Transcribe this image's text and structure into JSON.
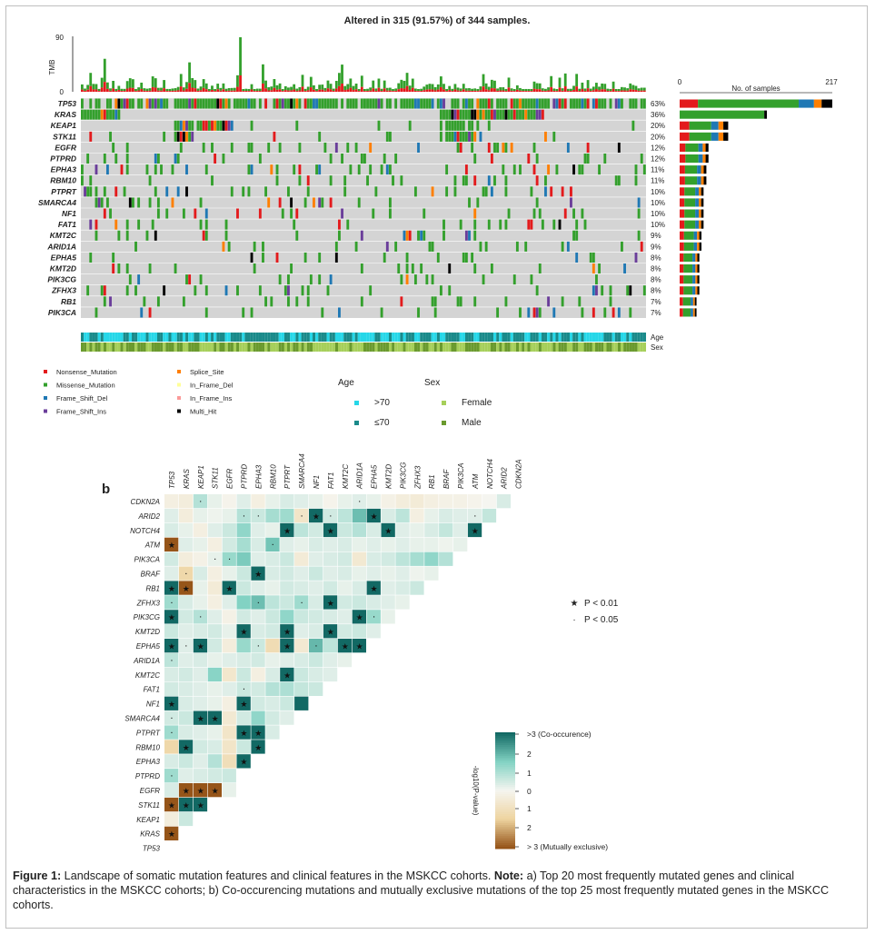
{
  "panel_a": {
    "title": "Altered in 315 (91.57%) of 344 samples.",
    "tmb_label": "TMB",
    "tmb_ticks": [
      "90",
      "0"
    ],
    "bar_axis_label": "No. of samples",
    "bar_axis_ticks": [
      "0",
      "217"
    ],
    "track_labels": [
      "Age",
      "Sex"
    ],
    "mutation_legend": [
      {
        "label": "Nonsense_Mutation",
        "color": "#e31a1c"
      },
      {
        "label": "Missense_Mutation",
        "color": "#33a02c"
      },
      {
        "label": "Frame_Shift_Del",
        "color": "#1f78b4"
      },
      {
        "label": "Frame_Shift_Ins",
        "color": "#6a3d9a"
      },
      {
        "label": "Splice_Site",
        "color": "#ff7f00"
      },
      {
        "label": "In_Frame_Del",
        "color": "#ffff99"
      },
      {
        "label": "In_Frame_Ins",
        "color": "#fb9a99"
      },
      {
        "label": "Multi_Hit",
        "color": "#000000"
      }
    ],
    "age_legend": {
      "title": "Age",
      "items": [
        {
          "label": ">70",
          "color": "#26d7e8"
        },
        {
          "label": "≤70",
          "color": "#1a8a8a"
        }
      ]
    },
    "sex_legend": {
      "title": "Sex",
      "items": [
        {
          "label": "Female",
          "color": "#a6cf5a"
        },
        {
          "label": "Male",
          "color": "#6a9a2e"
        }
      ]
    }
  },
  "chart_data": [
    {
      "type": "bar",
      "title": "Altered in 315 (91.57%) of 344 samples.",
      "xlabel": "No. of samples",
      "xlim": [
        0,
        217
      ],
      "categories": [
        "TP53",
        "KRAS",
        "KEAP1",
        "STK11",
        "EGFR",
        "PTPRD",
        "EPHA3",
        "RBM10",
        "PTPRT",
        "SMARCA4",
        "NF1",
        "FAT1",
        "KMT2C",
        "ARID1A",
        "EPHA5",
        "KMT2D",
        "PIK3CG",
        "ZFHX3",
        "RB1",
        "PIK3CA"
      ],
      "percent_labels": [
        "63%",
        "36%",
        "20%",
        "20%",
        "12%",
        "12%",
        "11%",
        "11%",
        "10%",
        "10%",
        "10%",
        "10%",
        "9%",
        "9%",
        "8%",
        "8%",
        "8%",
        "8%",
        "7%",
        "7%"
      ],
      "values": [
        217,
        124,
        69,
        69,
        41,
        41,
        38,
        38,
        34,
        34,
        34,
        34,
        31,
        31,
        28,
        28,
        28,
        28,
        24,
        24
      ]
    },
    {
      "type": "heatmap",
      "panel_label": "b",
      "x_genes": [
        "TP53",
        "KRAS",
        "KEAP1",
        "STK11",
        "EGFR",
        "PTPRD",
        "EPHA3",
        "RBM10",
        "PTPRT",
        "SMARCA4",
        "NF1",
        "FAT1",
        "KMT2C",
        "ARID1A",
        "EPHA5",
        "KMT2D",
        "PIK3CG",
        "ZFHX3",
        "RB1",
        "BRAF",
        "PIK3CA",
        "ATM",
        "NOTCH4",
        "ARID2",
        "CDKN2A"
      ],
      "y_genes": [
        "CDKN2A",
        "ARID2",
        "NOTCH4",
        "ATM",
        "PIK3CA",
        "BRAF",
        "RB1",
        "ZFHX3",
        "PIK3CG",
        "KMT2D",
        "EPHA5",
        "ARID1A",
        "KMT2C",
        "FAT1",
        "NF1",
        "SMARCA4",
        "PTPRT",
        "RBM10",
        "EPHA3",
        "PTPRD",
        "EGFR",
        "STK11",
        "KEAP1",
        "KRAS",
        "TP53"
      ],
      "colorbar_label": "-log10(P-value)",
      "colorbar_ticks": [
        ">3 (Co-occurence)",
        "2",
        "1",
        "0",
        "1",
        "2",
        "> 3 (Mutually exclusive)"
      ],
      "significance_legend": [
        {
          "symbol": "★",
          "label": "P < 0.01"
        },
        {
          "symbol": "·",
          "label": "P < 0.05"
        }
      ],
      "values": [
        [
          -0.3,
          -0.4,
          0.9,
          0.2,
          -0.1,
          0.3,
          -0.3,
          0.2,
          0.4,
          0.3,
          0.2,
          -0.1,
          0.2,
          0.3,
          0.2,
          -0.2,
          -0.4,
          -0.5,
          -0.3,
          -0.2,
          -0.2,
          -0.1,
          0,
          0.4
        ],
        [
          0.3,
          -0.4,
          0.2,
          0.1,
          0.2,
          0.9,
          0.6,
          1.1,
          1.2,
          -0.8,
          3.2,
          0.5,
          0.8,
          1.9,
          3.2,
          0.4,
          0.8,
          -0.3,
          0.2,
          0.4,
          0.3,
          0.3,
          0.7
        ],
        [
          0.4,
          0.2,
          -0.3,
          0.3,
          0.6,
          1.4,
          0.3,
          0.2,
          3.2,
          0.8,
          0.5,
          3.2,
          0.6,
          0.9,
          0.4,
          3.2,
          0.3,
          0.2,
          0.4,
          0.7,
          0.3,
          3.2
        ],
        [
          -3.2,
          0.3,
          0.2,
          -0.3,
          0.5,
          1.1,
          0.4,
          1.8,
          0.3,
          0.2,
          0.4,
          0.3,
          0.4,
          0.2,
          0.3,
          0.2,
          0.3,
          0.2,
          0.2,
          0.1,
          0.2
        ],
        [
          0.5,
          -0.4,
          -0.2,
          0.2,
          1.3,
          1.7,
          0.3,
          0.4,
          0.6,
          -0.5,
          0.3,
          0.4,
          0.5,
          -0.6,
          0.4,
          0.5,
          0.8,
          1.1,
          1.4,
          0.9
        ],
        [
          0.3,
          -1.4,
          0.4,
          -0.3,
          0.2,
          0.6,
          3.2,
          0.4,
          0.5,
          0.3,
          0.6,
          0.3,
          0.4,
          0.2,
          0.3,
          0.2,
          0.3,
          0.1,
          0.2
        ],
        [
          3.2,
          -3.2,
          0.2,
          -0.5,
          3.2,
          0.6,
          0.3,
          0.2,
          0.5,
          0.4,
          0.3,
          0.5,
          0.2,
          0.4,
          3.2,
          0.3,
          0.4,
          0.6
        ],
        [
          1.2,
          0.4,
          0.2,
          -0.3,
          0.3,
          1.6,
          1.9,
          0.8,
          0.6,
          1.2,
          0.4,
          3.2,
          0.5,
          0.6,
          0.4,
          0.3,
          0.2
        ],
        [
          3.2,
          0.5,
          0.9,
          0.3,
          -0.2,
          0.5,
          0.3,
          0.6,
          1.4,
          0.6,
          0.5,
          0.4,
          0.3,
          3.2,
          1.3,
          0.2
        ],
        [
          0.6,
          0.3,
          0.4,
          0.5,
          0.2,
          3.2,
          0.4,
          0.5,
          3.2,
          0.3,
          0.4,
          3.2,
          0.5,
          0.6,
          0.3
        ],
        [
          3.2,
          0.3,
          3.2,
          0.5,
          -0.4,
          1.3,
          0.6,
          -1.2,
          3.2,
          -0.6,
          2.0,
          0.8,
          3.2,
          3.2
        ],
        [
          0.8,
          0.3,
          0.4,
          0.2,
          0.3,
          0.4,
          0.5,
          0.2,
          0.3,
          0.4,
          0.6,
          0.3,
          0.2
        ],
        [
          0.4,
          0.5,
          0.3,
          1.5,
          -0.7,
          0.6,
          -0.3,
          0.4,
          3.2,
          0.6,
          0.4,
          0.3
        ],
        [
          0.5,
          0.4,
          0.3,
          0.2,
          0.3,
          0.6,
          0.5,
          0.9,
          1.0,
          0.7,
          0.6
        ],
        [
          3.2,
          0.4,
          0.3,
          0.2,
          -0.3,
          3.2,
          0.5,
          0.4,
          0.6,
          3.2
        ],
        [
          0.5,
          0.6,
          3.2,
          3.2,
          -0.6,
          0.5,
          1.4,
          0.5,
          0.3
        ],
        [
          1.2,
          0.4,
          0.3,
          0.2,
          -0.8,
          3.2,
          3.2,
          0.4
        ],
        [
          -1.4,
          3.2,
          0.5,
          0.4,
          -0.8,
          0.6,
          3.2
        ],
        [
          0.4,
          0.6,
          0.3,
          0.9,
          -1.1,
          3.2
        ],
        [
          1.2,
          0.3,
          0.4,
          0.5,
          0.6
        ],
        [
          0.4,
          -3.2,
          -3.2,
          -3.2,
          0.2
        ],
        [
          -3.2,
          3.2,
          3.2
        ],
        [
          -0.4,
          0.6
        ],
        [
          -3.2
        ],
        []
      ],
      "stars": [
        [],
        [
          10,
          14
        ],
        [
          8,
          11,
          15,
          21
        ],
        [
          0
        ],
        [],
        [
          6
        ],
        [
          0,
          1,
          4,
          14
        ],
        [
          11
        ],
        [
          0,
          13
        ],
        [
          5,
          8,
          11
        ],
        [
          0,
          2,
          8,
          12,
          13
        ],
        [],
        [
          8
        ],
        [],
        [
          0,
          5
        ],
        [
          2,
          3
        ],
        [
          5,
          6
        ],
        [
          1,
          6
        ],
        [
          5
        ],
        [],
        [
          1,
          2,
          3
        ],
        [
          0,
          1,
          2
        ],
        [],
        [
          0
        ],
        []
      ],
      "dots": [
        [
          2,
          13
        ],
        [
          5,
          6,
          9,
          10,
          11,
          21
        ],
        [],
        [
          7
        ],
        [
          3,
          4
        ],
        [
          1
        ],
        [],
        [
          0,
          6,
          9
        ],
        [
          2,
          14
        ],
        [],
        [
          1,
          6,
          10
        ],
        [
          0
        ],
        [],
        [
          5
        ],
        [],
        [
          0
        ],
        [
          0
        ],
        [],
        [],
        [
          0
        ],
        [],
        [],
        [],
        [],
        []
      ]
    }
  ],
  "figure_label_text": "Figure 1:",
  "caption": {
    "prefix": " Landscape of somatic mutation features and clinical features in the MSKCC cohorts. ",
    "note_label": "Note:",
    "body": " a) Top 20 most frequently mutated genes and clinical characteristics in the MSKCC cohorts; b) Co-occurencing mutations and mutually exclusive mutations of the top 25 most frequently mutated genes in the MSKCC cohorts."
  }
}
